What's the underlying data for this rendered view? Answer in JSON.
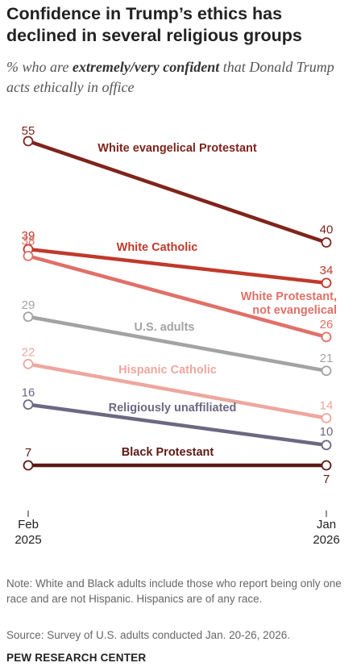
{
  "title": "Confidence in Trump’s ethics has declined in several religious groups",
  "subtitle": {
    "prefix": "% who are ",
    "emphasis": "extremely/very confident",
    "suffix": " that Donald Trump acts ethically in office"
  },
  "note": "Note: White and Black adults include those who report being only one race and are not Hispanic. Hispanics are of any race.",
  "source": "Source: Survey of U.S. adults conducted Jan. 20-26, 2026.",
  "brand": "PEW RESEARCH CENTER",
  "chart_data": {
    "type": "line",
    "x": [
      "Feb 2025",
      "Jan 2026"
    ],
    "x_labels": [
      [
        "Feb",
        "2025"
      ],
      [
        "Jan",
        "2026"
      ]
    ],
    "ylabel": "",
    "legend": "direct labels",
    "grid": false,
    "series": [
      {
        "name": "White evangelical Protestant",
        "values": [
          55,
          40
        ],
        "color": "#7f241c"
      },
      {
        "name": "White Catholic",
        "values": [
          39,
          34
        ],
        "color": "#c0392b"
      },
      {
        "name": "White Protestant, not evangelical",
        "values": [
          38,
          26
        ],
        "color": "#e07068"
      },
      {
        "name": "U.S. adults",
        "values": [
          29,
          21
        ],
        "color": "#a3a3a3"
      },
      {
        "name": "Hispanic Catholic",
        "values": [
          22,
          14
        ],
        "color": "#eda79f"
      },
      {
        "name": "Religiously unaffiliated",
        "values": [
          16,
          10
        ],
        "color": "#6b6882"
      },
      {
        "name": "Black Protestant",
        "values": [
          7,
          7
        ],
        "color": "#5c1a16"
      }
    ]
  }
}
